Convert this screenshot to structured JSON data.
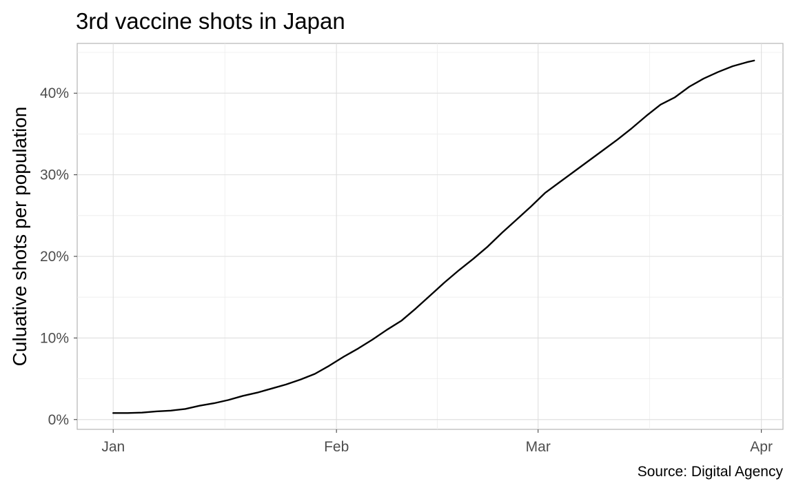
{
  "chart_data": {
    "type": "line",
    "title": "3rd vaccine shots in Japan",
    "subtitle": "",
    "xlabel": "",
    "ylabel": "Culuative shots per population",
    "caption": "Source: Digital Agency",
    "x_ticks": [
      {
        "date": "2022-01-01",
        "label": "Jan"
      },
      {
        "date": "2022-02-01",
        "label": "Feb"
      },
      {
        "date": "2022-03-01",
        "label": "Mar"
      },
      {
        "date": "2022-04-01",
        "label": "Apr"
      }
    ],
    "y_ticks": [
      {
        "value": 0,
        "label": "0%"
      },
      {
        "value": 10,
        "label": "10%"
      },
      {
        "value": 20,
        "label": "20%"
      },
      {
        "value": 30,
        "label": "30%"
      },
      {
        "value": 40,
        "label": "40%"
      }
    ],
    "xlim": [
      "2021-12-27",
      "2022-04-04"
    ],
    "ylim": [
      -1.2,
      46.1
    ],
    "y_unit": "%",
    "grid": true,
    "legend": "none",
    "colors": {
      "line": "#000000",
      "grid": "#dedede",
      "border": "#b3b3b3",
      "tick_text": "#4d4d4d"
    },
    "series": [
      {
        "x": [
          "2022-01-01",
          "2022-01-03",
          "2022-01-05",
          "2022-01-07",
          "2022-01-09",
          "2022-01-11",
          "2022-01-13",
          "2022-01-15",
          "2022-01-17",
          "2022-01-19",
          "2022-01-21",
          "2022-01-23",
          "2022-01-25",
          "2022-01-27",
          "2022-01-29",
          "2022-01-31",
          "2022-02-02",
          "2022-02-04",
          "2022-02-06",
          "2022-02-08",
          "2022-02-10",
          "2022-02-12",
          "2022-02-14",
          "2022-02-16",
          "2022-02-18",
          "2022-02-20",
          "2022-02-22",
          "2022-02-24",
          "2022-02-26",
          "2022-02-28",
          "2022-03-02",
          "2022-03-04",
          "2022-03-06",
          "2022-03-08",
          "2022-03-10",
          "2022-03-12",
          "2022-03-14",
          "2022-03-16",
          "2022-03-18",
          "2022-03-20",
          "2022-03-22",
          "2022-03-24",
          "2022-03-26",
          "2022-03-28",
          "2022-03-30",
          "2022-03-31"
        ],
        "values": [
          0.8,
          0.8,
          0.85,
          1.0,
          1.1,
          1.3,
          1.7,
          2.0,
          2.4,
          2.9,
          3.3,
          3.8,
          4.3,
          4.9,
          5.6,
          6.6,
          7.7,
          8.7,
          9.8,
          11.0,
          12.1,
          13.6,
          15.2,
          16.8,
          18.3,
          19.7,
          21.2,
          22.9,
          24.5,
          26.1,
          27.8,
          29.1,
          30.4,
          31.7,
          33.0,
          34.3,
          35.7,
          37.2,
          38.6,
          39.5,
          40.8,
          41.8,
          42.6,
          43.3,
          43.8,
          44.0
        ]
      }
    ]
  }
}
